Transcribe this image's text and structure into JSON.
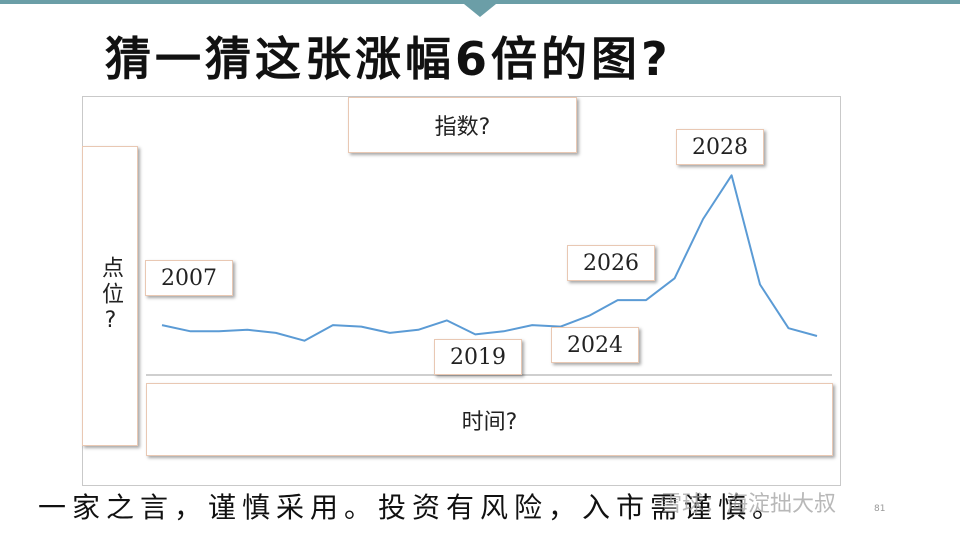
{
  "slide": {
    "title": "猜一猜这张涨幅6倍的图?",
    "index_box": "指数?",
    "y_axis_label": "点位?",
    "x_axis_box": "时间?",
    "footer": "一家之言，谨慎采用。投资有风险，入市需谨慎。",
    "watermark": "雪球：海淀拙大叔",
    "page_number": "81"
  },
  "colors": {
    "line": "#5b9bd5",
    "accent_bar": "#6b9ea7",
    "box_border": "#e9c8b3"
  },
  "chart_data": {
    "type": "line",
    "series": [
      {
        "values": [
          32,
          28,
          28,
          29,
          27,
          22,
          32,
          31,
          27,
          29,
          35,
          26,
          28,
          32,
          31,
          38,
          48,
          48,
          62,
          100,
          128,
          58,
          30,
          25
        ]
      }
    ],
    "annotations": [
      "2007",
      "2019",
      "2024",
      "2026",
      "2028"
    ]
  }
}
